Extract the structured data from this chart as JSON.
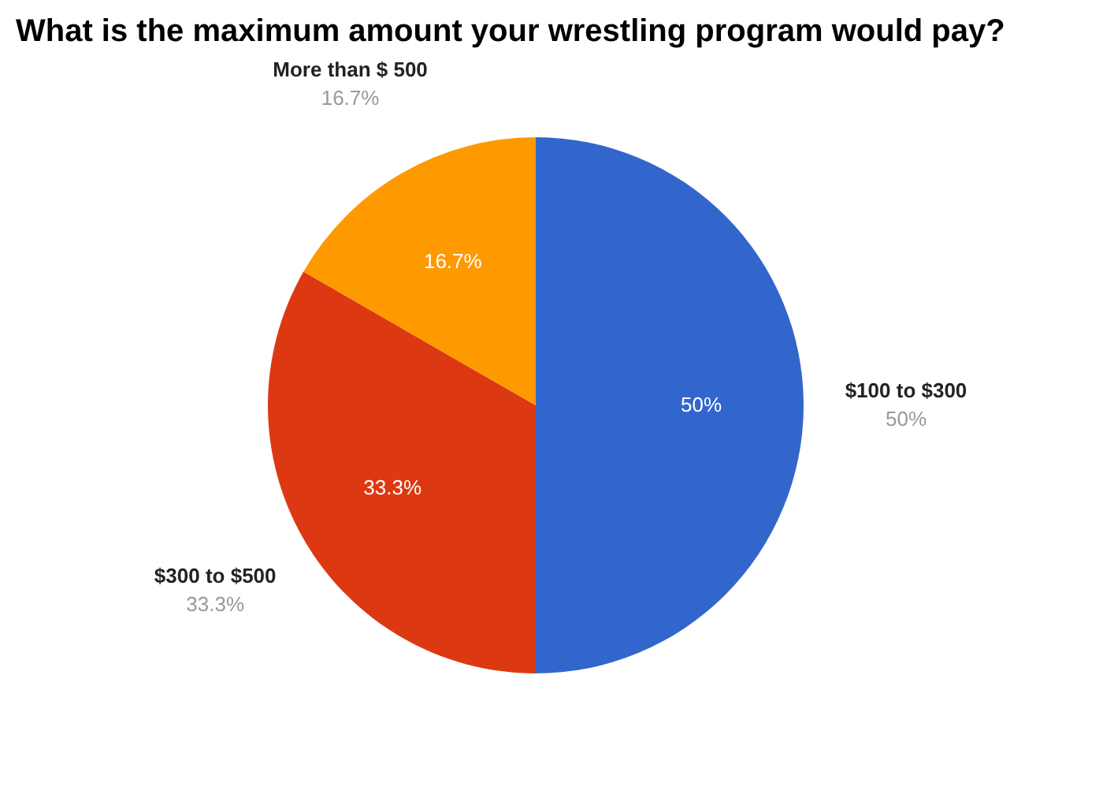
{
  "chart_data": {
    "type": "pie",
    "title": "What is the maximum amount your wrestling program would pay?",
    "categories": [
      "$100 to $300",
      "$300 to $500",
      "More than $ 500"
    ],
    "values": [
      50,
      33.3,
      16.7
    ],
    "colors": [
      "#3366cc",
      "#dc3912",
      "#ff9900"
    ],
    "value_labels": [
      "50%",
      "33.3%",
      "16.7%"
    ]
  }
}
